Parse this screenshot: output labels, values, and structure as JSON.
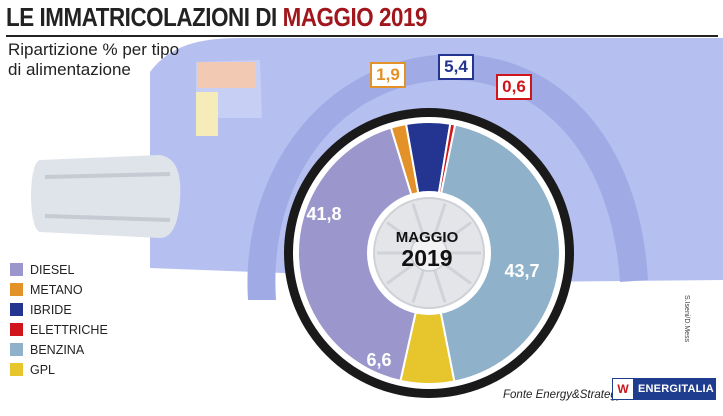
{
  "header": {
    "title_part1": "LE IMMATRICOLAZIONI DI ",
    "title_part2": "MAGGIO 2019",
    "subtitle_line1": "Ripartizione % per tipo",
    "subtitle_line2": "di alimentazione"
  },
  "chart_data": {
    "type": "pie",
    "title": "LE IMMATRICOLAZIONI DI MAGGIO 2019",
    "subtitle": "Ripartizione % per tipo di alimentazione",
    "center_label": [
      "MAGGIO",
      "2019"
    ],
    "slices": [
      {
        "label": "DIESEL",
        "value": 41.8,
        "value_text": "41,8",
        "color": "#9b97cc"
      },
      {
        "label": "METANO",
        "value": 1.9,
        "value_text": "1,9",
        "color": "#e3922a"
      },
      {
        "label": "IBRIDE",
        "value": 5.4,
        "value_text": "5,4",
        "color": "#243591"
      },
      {
        "label": "ELETTRICHE",
        "value": 0.6,
        "value_text": "0,6",
        "color": "#d0161c"
      },
      {
        "label": "BENZINA",
        "value": 43.7,
        "value_text": "43,7",
        "color": "#8fb1c9"
      },
      {
        "label": "GPL",
        "value": 6.6,
        "value_text": "6,6",
        "color": "#e7c52c"
      }
    ],
    "legend_position": "bottom-left"
  },
  "footer": {
    "source": "Fonte Energy&Strategy",
    "credit": "S.Iseni/D.Mess",
    "logo_text": "ENERGITALIA",
    "logo_mark": "W"
  }
}
